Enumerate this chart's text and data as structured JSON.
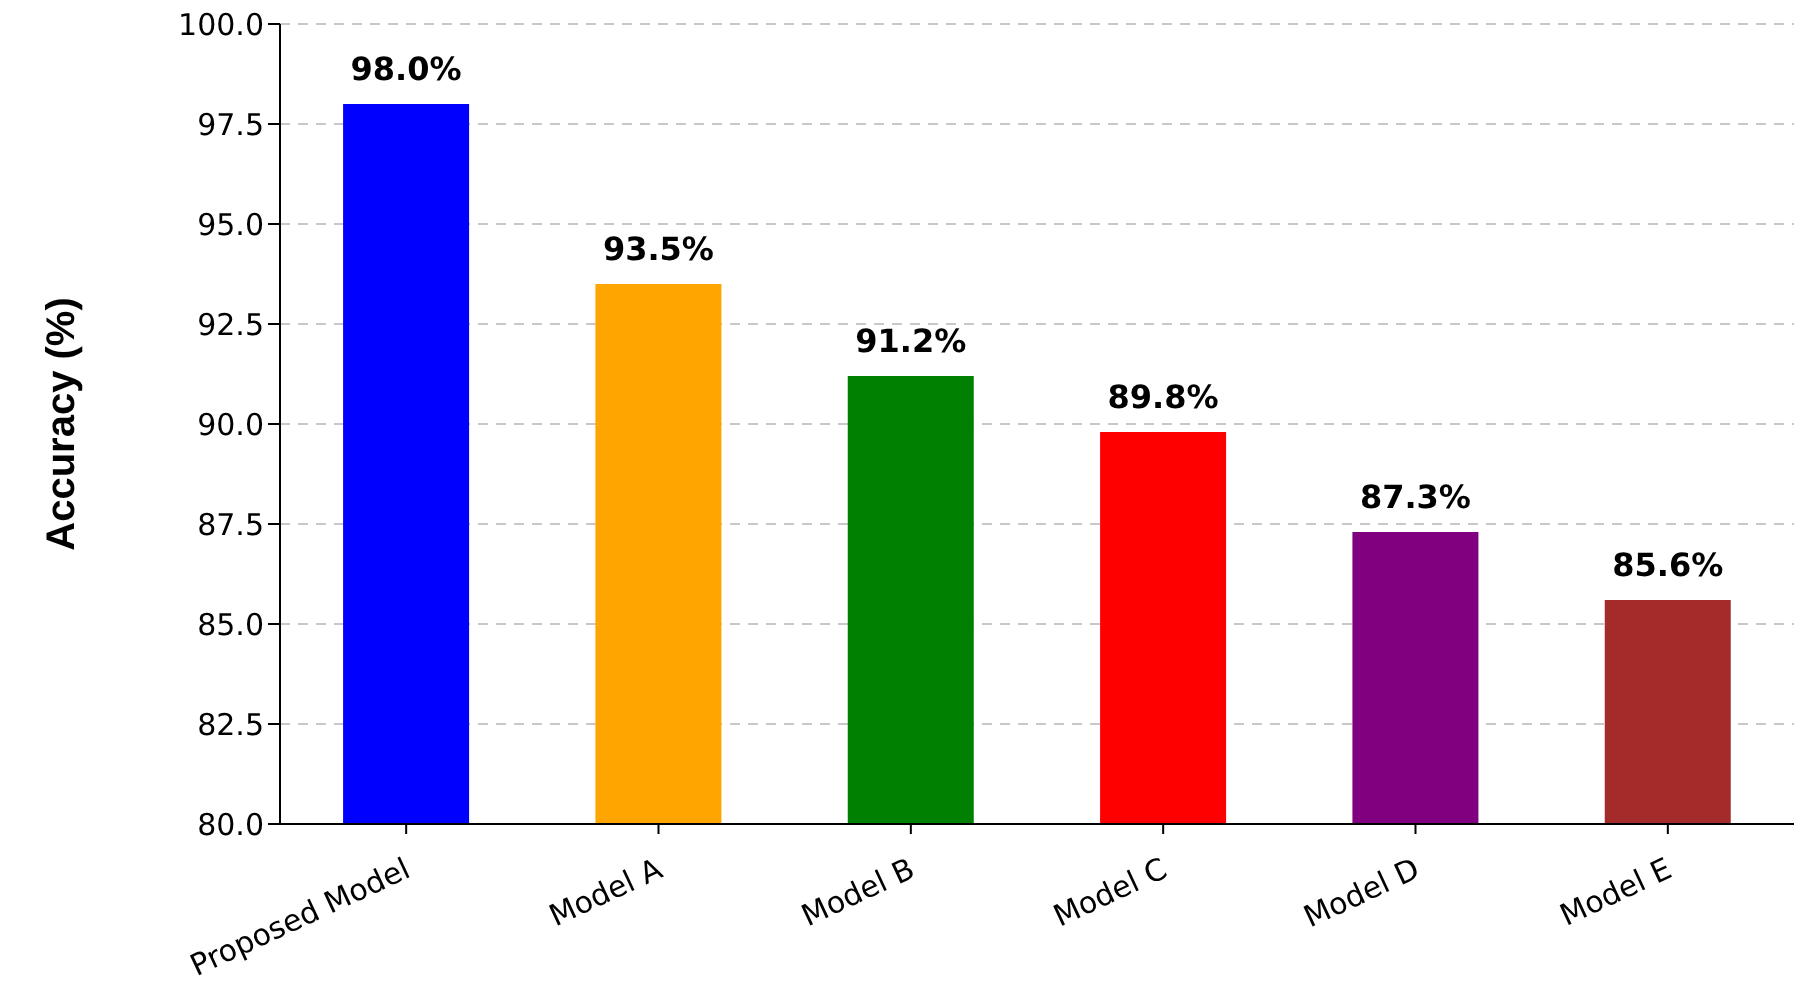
{
  "chart_data": {
    "type": "bar",
    "ylabel": "Accuracy (%)",
    "categories": [
      "Proposed Model",
      "Model A",
      "Model B",
      "Model C",
      "Model D",
      "Model E"
    ],
    "values": [
      98.0,
      93.5,
      91.2,
      89.8,
      87.3,
      85.6
    ],
    "colors": [
      "#0000ff",
      "#ffa500",
      "#008000",
      "#ff0000",
      "#800080",
      "#a52a2a"
    ],
    "value_labels": [
      "98.0%",
      "93.5%",
      "91.2%",
      "89.8%",
      "87.3%",
      "85.6%"
    ],
    "ylim": [
      80,
      100
    ],
    "yticks": [
      {
        "value": 80,
        "label": "80.0"
      },
      {
        "value": 82.5,
        "label": "82.5"
      },
      {
        "value": 85,
        "label": "85.0"
      },
      {
        "value": 87.5,
        "label": "87.5"
      },
      {
        "value": 90,
        "label": "90.0"
      },
      {
        "value": 92.5,
        "label": "92.5"
      },
      {
        "value": 95,
        "label": "95.0"
      },
      {
        "value": 97.5,
        "label": "97.5"
      },
      {
        "value": 100,
        "label": "100.0"
      }
    ],
    "grid": "y"
  }
}
